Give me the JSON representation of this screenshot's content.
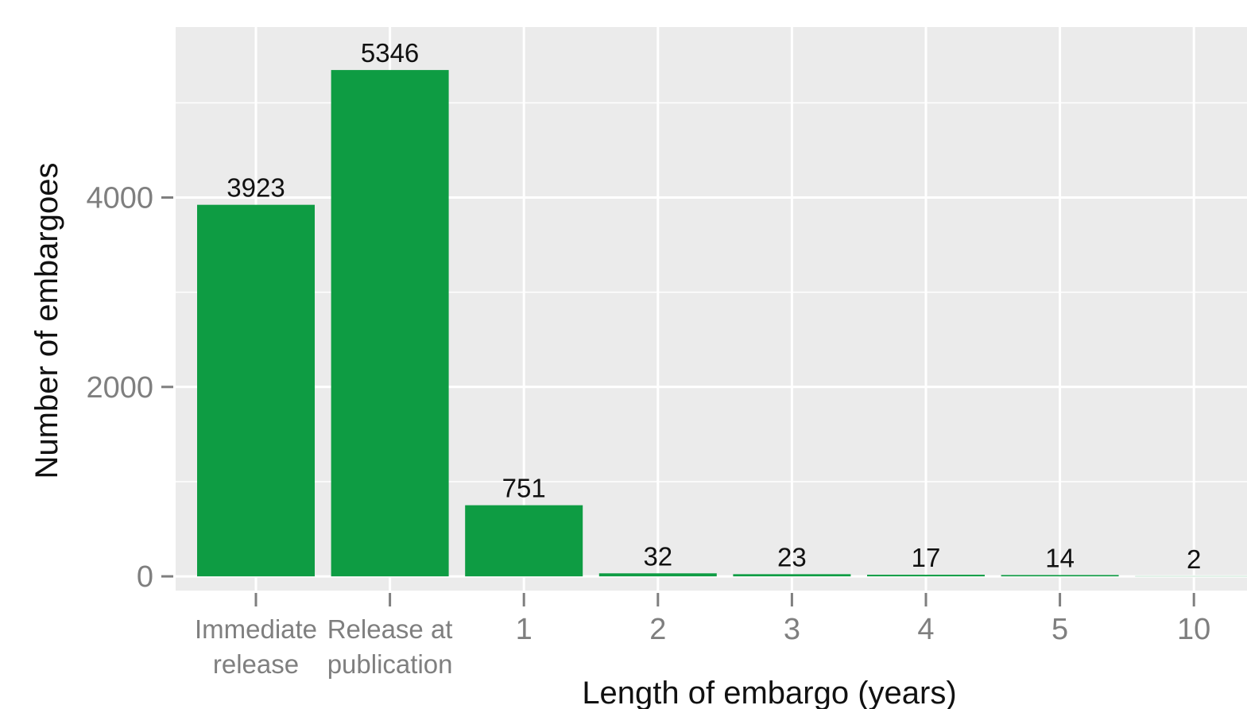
{
  "chart_data": {
    "type": "bar",
    "xlabel": "Length of embargo (years)",
    "ylabel": "Number of embargoes",
    "categories": [
      [
        "Immediate",
        "release"
      ],
      [
        "Release at",
        "publication"
      ],
      [
        "1"
      ],
      [
        "2"
      ],
      [
        "3"
      ],
      [
        "4"
      ],
      [
        "5"
      ],
      [
        "10"
      ]
    ],
    "values": [
      3923,
      5346,
      751,
      32,
      23,
      17,
      14,
      2
    ],
    "data_labels": [
      "3923",
      "5346",
      "751",
      "32",
      "23",
      "17",
      "14",
      "2"
    ],
    "y_ticks": [
      0,
      2000,
      4000
    ],
    "y_tick_labels": [
      "0",
      "2000",
      "4000"
    ],
    "ylim": [
      -150,
      5800
    ],
    "grid": true,
    "legend": "none",
    "colors": {
      "bar": "#0e9c43",
      "panel": "#ebebeb",
      "grid": "#ffffff",
      "tick_text": "#7f7f7f",
      "label_text": "#111111"
    }
  }
}
